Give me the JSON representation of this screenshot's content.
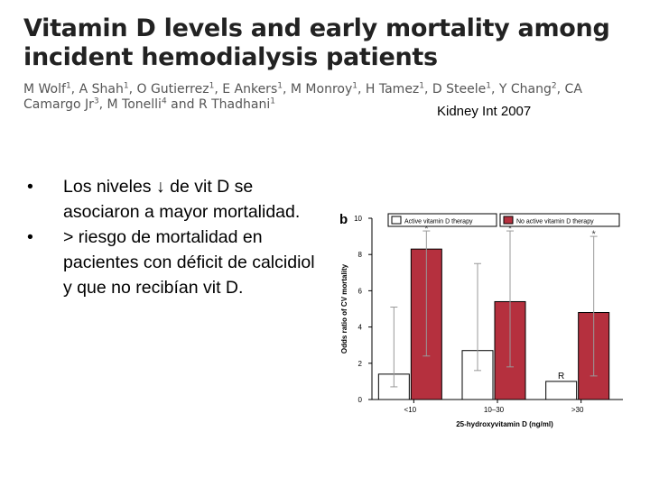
{
  "slide": {
    "title": "Vitamin D levels and early mortality among incident hemodialysis patients",
    "authors": [
      {
        "name": "M Wolf",
        "sup": "1"
      },
      {
        "name": "A Shah",
        "sup": "1"
      },
      {
        "name": "O Gutierrez",
        "sup": "1"
      },
      {
        "name": "E Ankers",
        "sup": "1"
      },
      {
        "name": "M Monroy",
        "sup": "1"
      },
      {
        "name": "H Tamez",
        "sup": "1"
      },
      {
        "name": "D Steele",
        "sup": "1"
      },
      {
        "name": "Y Chang",
        "sup": "2"
      },
      {
        "name": "CA Camargo Jr",
        "sup": "3"
      },
      {
        "name": "M Tonelli",
        "sup": "4"
      },
      {
        "name": "R Thadhani",
        "sup": "1"
      }
    ],
    "citation": "Kidney Int 2007",
    "bullets": [
      "Los niveles ↓ de vit D se asociaron a mayor mortalidad.",
      "> riesgo de mortalidad en pacientes con déficit de calcidiol y que no recibían vit D."
    ],
    "bullet_symbol": "•"
  },
  "chart_data": {
    "type": "bar",
    "panel_label": "b",
    "title": "",
    "xlabel": "25-hydroxyvitamin D (ng/ml)",
    "ylabel": "Odds ratio of CV mortality",
    "ylim": [
      0,
      10
    ],
    "yticks": [
      "0",
      "2",
      "4",
      "6",
      "8",
      "10"
    ],
    "categories": [
      "<10",
      "10–30",
      ">30"
    ],
    "series": [
      {
        "name": "Active vitamin D therapy",
        "color": "#ffffff",
        "values": [
          1.4,
          2.7,
          1.0
        ],
        "ci_low": [
          0.7,
          1.6,
          null
        ],
        "ci_high": [
          5.1,
          7.5,
          null
        ]
      },
      {
        "name": "No active vitamin D therapy",
        "color": "#b5303e",
        "values": [
          8.3,
          5.4,
          4.8
        ],
        "ci_low": [
          2.4,
          1.8,
          1.3
        ],
        "ci_high": [
          9.3,
          9.3,
          9.0
        ]
      }
    ],
    "reference_label": "R",
    "significance_marker": "*",
    "legend_position": "top"
  }
}
